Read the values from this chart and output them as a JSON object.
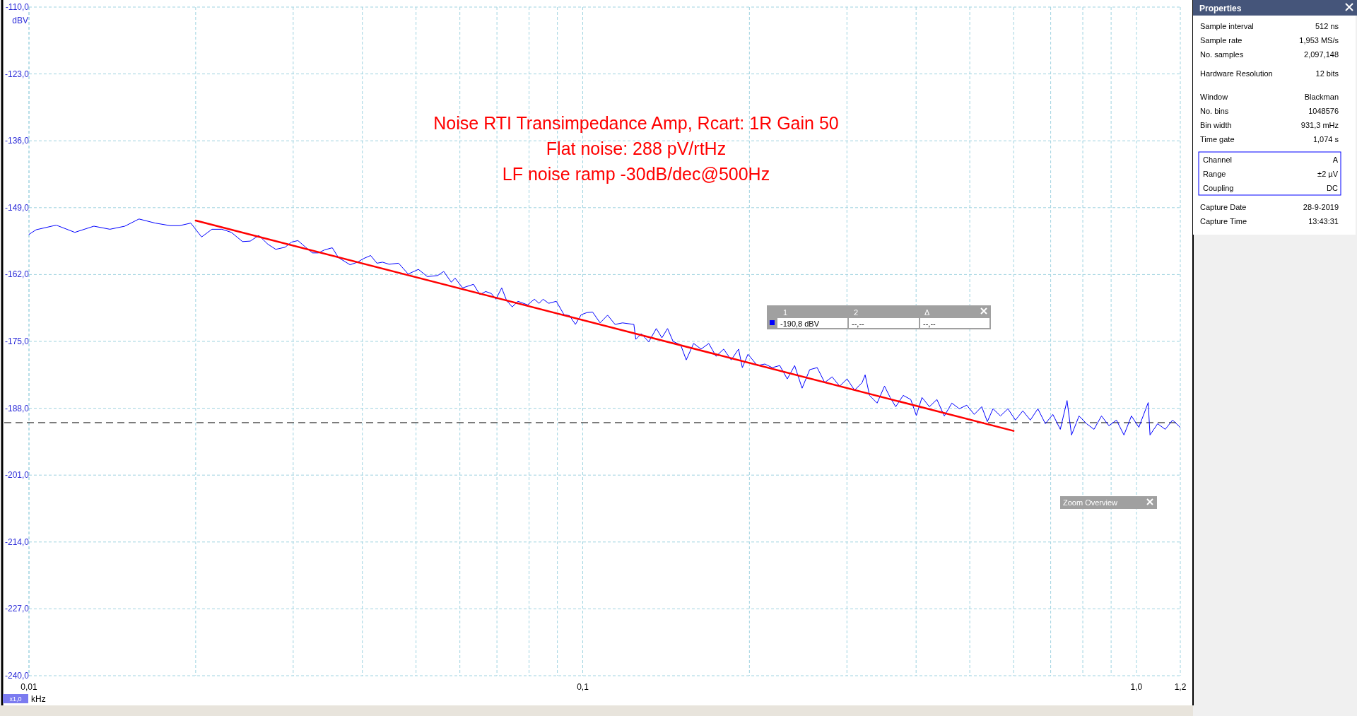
{
  "chart_data": {
    "type": "line",
    "title": "Noise RTI Transimpedance Amp, Rcart: 1R Gain 50",
    "xlabel": "kHz",
    "ylabel": "dBV",
    "log": "x",
    "grid": true,
    "xlim": [
      0.01,
      1.2
    ],
    "ylim": [
      -240,
      -110
    ],
    "xticks": [
      {
        "value": 0.01,
        "label": "0,01"
      },
      {
        "value": 0.02,
        "label": null
      },
      {
        "value": 0.03,
        "label": null
      },
      {
        "value": 0.04,
        "label": null
      },
      {
        "value": 0.05,
        "label": null
      },
      {
        "value": 0.06,
        "label": null
      },
      {
        "value": 0.07,
        "label": null
      },
      {
        "value": 0.08,
        "label": null
      },
      {
        "value": 0.09,
        "label": null
      },
      {
        "value": 0.1,
        "label": "0,1"
      },
      {
        "value": 0.2,
        "label": null
      },
      {
        "value": 0.3,
        "label": null
      },
      {
        "value": 0.4,
        "label": null
      },
      {
        "value": 0.5,
        "label": null
      },
      {
        "value": 0.6,
        "label": null
      },
      {
        "value": 0.7,
        "label": null
      },
      {
        "value": 0.8,
        "label": null
      },
      {
        "value": 0.9,
        "label": null
      },
      {
        "value": 1.0,
        "label": "1,0"
      },
      {
        "value": 1.2,
        "label": "1,2"
      }
    ],
    "yticks": [
      {
        "value": -110,
        "label": "-110,0"
      },
      {
        "value": -123,
        "label": "-123,0"
      },
      {
        "value": -136,
        "label": "-136,0"
      },
      {
        "value": -149,
        "label": "-149,0"
      },
      {
        "value": -162,
        "label": "-162,0"
      },
      {
        "value": -175,
        "label": "-175,0"
      },
      {
        "value": -188,
        "label": "-188,0"
      },
      {
        "value": -201,
        "label": "-201,0"
      },
      {
        "value": -214,
        "label": "-214,0"
      },
      {
        "value": -227,
        "label": "-227,0"
      },
      {
        "value": -240,
        "label": "-240,0"
      }
    ],
    "series": [
      {
        "color": "#0000ff",
        "x": [
          0.01,
          0.0103,
          0.0112,
          0.0121,
          0.0131,
          0.014,
          0.0149,
          0.0158,
          0.0169,
          0.018,
          0.0187,
          0.0196,
          0.0205,
          0.0214,
          0.0223,
          0.0232,
          0.0243,
          0.0251,
          0.026,
          0.027,
          0.0279,
          0.029,
          0.0298,
          0.0306,
          0.0316,
          0.0325,
          0.0333,
          0.0342,
          0.0353,
          0.0362,
          0.038,
          0.0392,
          0.0402,
          0.0414,
          0.0425,
          0.0435,
          0.0447,
          0.0465,
          0.0484,
          0.0505,
          0.0524,
          0.0547,
          0.0561,
          0.0579,
          0.0588,
          0.0607,
          0.0635,
          0.0652,
          0.0668,
          0.0684,
          0.0697,
          0.0714,
          0.0729,
          0.0746,
          0.0764,
          0.0795,
          0.0818,
          0.0834,
          0.0848,
          0.0868,
          0.0896,
          0.0925,
          0.0947,
          0.097,
          0.0994,
          0.1018,
          0.1042,
          0.1075,
          0.1109,
          0.1144,
          0.118,
          0.1237,
          0.1247,
          0.1276,
          0.1316,
          0.1358,
          0.139,
          0.1423,
          0.1456,
          0.1503,
          0.1538,
          0.1586,
          0.1636,
          0.1689,
          0.1741,
          0.1797,
          0.1854,
          0.1912,
          0.1942,
          0.1988,
          0.2067,
          0.2132,
          0.2199,
          0.2269,
          0.2341,
          0.2414,
          0.249,
          0.257,
          0.2651,
          0.2735,
          0.2821,
          0.2911,
          0.3002,
          0.3097,
          0.3196,
          0.3236,
          0.3296,
          0.3401,
          0.3508,
          0.3591,
          0.3675,
          0.3791,
          0.3912,
          0.4004,
          0.4099,
          0.4227,
          0.4361,
          0.4498,
          0.4641,
          0.4787,
          0.4938,
          0.5094,
          0.5255,
          0.5379,
          0.5507,
          0.5681,
          0.586,
          0.6045,
          0.6235,
          0.6432,
          0.6637,
          0.6846,
          0.7063,
          0.7286,
          0.7493,
          0.7634,
          0.7876,
          0.8125,
          0.8381,
          0.8647,
          0.892,
          0.9201,
          0.9493,
          0.9793,
          1.01,
          1.05,
          1.058,
          1.092,
          1.127,
          1.162,
          1.199
        ],
        "values": [
          -154.2,
          -153.3,
          -152.4,
          -153.8,
          -152.6,
          -153.2,
          -152.6,
          -151.2,
          -152.0,
          -152.5,
          -152.5,
          -152.0,
          -154.7,
          -153.2,
          -153.2,
          -153.8,
          -155.6,
          -155.5,
          -154.4,
          -156.1,
          -157.1,
          -156.7,
          -155.7,
          -155.4,
          -156.7,
          -157.8,
          -157.8,
          -157.2,
          -156.8,
          -158.7,
          -160.1,
          -159.6,
          -158.9,
          -158.3,
          -159.8,
          -159.6,
          -160.0,
          -159.8,
          -161.9,
          -161.0,
          -162.4,
          -162.2,
          -161.4,
          -163.5,
          -162.7,
          -164.6,
          -163.9,
          -165.9,
          -165.3,
          -165.7,
          -166.8,
          -164.6,
          -167.1,
          -168.3,
          -167.2,
          -167.9,
          -166.8,
          -167.6,
          -166.8,
          -167.6,
          -167.2,
          -169.8,
          -170.0,
          -171.7,
          -169.8,
          -169.4,
          -169.3,
          -171.4,
          -169.9,
          -171.7,
          -171.4,
          -171.7,
          -174.6,
          -173.5,
          -175.1,
          -172.5,
          -174.3,
          -172.5,
          -175.0,
          -175.7,
          -178.6,
          -175.4,
          -176.5,
          -175.4,
          -177.9,
          -176.5,
          -178.6,
          -176.5,
          -180.1,
          -177.5,
          -179.7,
          -179.4,
          -180.1,
          -179.7,
          -182.3,
          -179.7,
          -184.1,
          -180.5,
          -180.1,
          -183.0,
          -181.9,
          -183.7,
          -182.3,
          -184.5,
          -183.0,
          -181.5,
          -185.5,
          -187.0,
          -183.7,
          -185.9,
          -187.7,
          -185.5,
          -186.3,
          -189.4,
          -185.9,
          -187.7,
          -186.3,
          -189.5,
          -187.0,
          -188.1,
          -187.4,
          -189.2,
          -187.7,
          -190.6,
          -188.1,
          -189.5,
          -188.1,
          -190.3,
          -188.5,
          -190.3,
          -188.1,
          -191.0,
          -189.2,
          -192.1,
          -186.5,
          -193.2,
          -189.5,
          -191.0,
          -192.1,
          -189.5,
          -191.4,
          -190.3,
          -193.2,
          -189.5,
          -191.7,
          -186.9,
          -193.2,
          -191.0,
          -192.1,
          -190.3,
          -191.7
        ]
      },
      {
        "color": "#ff0000",
        "x": [
          0.02,
          0.6
        ],
        "values": [
          -151.5,
          -192.4
        ]
      }
    ],
    "ref_lines": [
      {
        "axis": "y",
        "value": -190.8,
        "label": "-190,8 dBV",
        "color": "#000000",
        "line_style": "dashed"
      }
    ],
    "annotations": [
      "Flat noise: 288 pV/rtHz",
      "LF noise ramp -30dB/dec@500Hz",
      "Properties",
      "Sample interval",
      "512 ns",
      "Sample rate",
      "1,953 MS/s",
      "No. samples",
      "2,097,148",
      "Hardware Resolution",
      "12 bits",
      "Window",
      "Blackman",
      "No. bins",
      "1048576",
      "Bin width",
      "931,3 mHz",
      "Time gate",
      "1,074 s",
      "Channel",
      "A",
      "Range",
      "±2 µV",
      "Coupling",
      "DC",
      "Capture Date",
      "28-9-2019",
      "Capture Time",
      "13:43:31",
      "1",
      "2",
      "Δ",
      "--,--",
      "--,--",
      "Zoom Overview",
      "x1,0"
    ]
  }
}
